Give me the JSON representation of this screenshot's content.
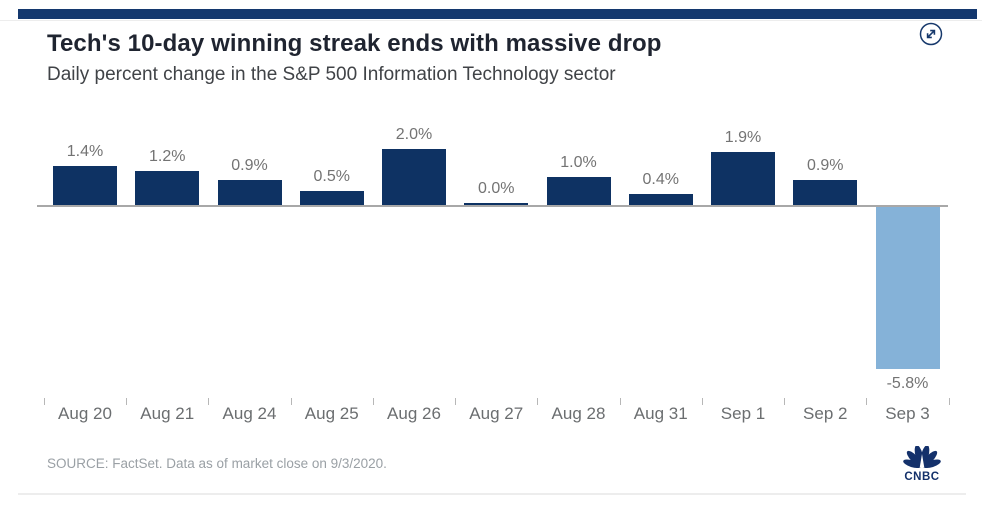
{
  "header": {
    "title": "Tech's 10-day winning streak ends with massive drop",
    "subtitle": "Daily percent change in the S&P 500 Information Technology sector"
  },
  "chart_data": {
    "type": "bar",
    "title": "Tech's 10-day winning streak ends with massive drop",
    "subtitle": "Daily percent change in the S&P 500 Information Technology sector",
    "categories": [
      "Aug 20",
      "Aug 21",
      "Aug 24",
      "Aug 25",
      "Aug 26",
      "Aug 27",
      "Aug 28",
      "Aug 31",
      "Sep 1",
      "Sep 2",
      "Sep 3"
    ],
    "values": [
      1.4,
      1.2,
      0.9,
      0.5,
      2.0,
      0.0,
      1.0,
      0.4,
      1.9,
      0.9,
      -5.8
    ],
    "labels": [
      "1.4%",
      "1.2%",
      "0.9%",
      "0.5%",
      "2.0%",
      "0.0%",
      "1.0%",
      "0.4%",
      "1.9%",
      "0.9%",
      "-5.8%"
    ],
    "xlabel": "",
    "ylabel": "",
    "ylim": [
      -6.2,
      2.4
    ],
    "grid": false,
    "legend": false,
    "bar_color_positive": "#0e3263",
    "bar_color_negative": "#85b2d8"
  },
  "footer": {
    "source": "SOURCE: FactSet. Data as of market close on 9/3/2020.",
    "brand": "CNBC"
  },
  "icons": {
    "expand": "expand-diagonal-arrows-in-circle",
    "brand_mark": "cnbc-peacock"
  },
  "colors": {
    "top_strip": "#14386e",
    "title_text": "#1f2430",
    "subtitle_text": "#404347",
    "value_label_text": "#737373",
    "axis_label_text": "#6b6e70",
    "axis_line": "#a8a8a8",
    "source_text": "#9aa0a5"
  }
}
